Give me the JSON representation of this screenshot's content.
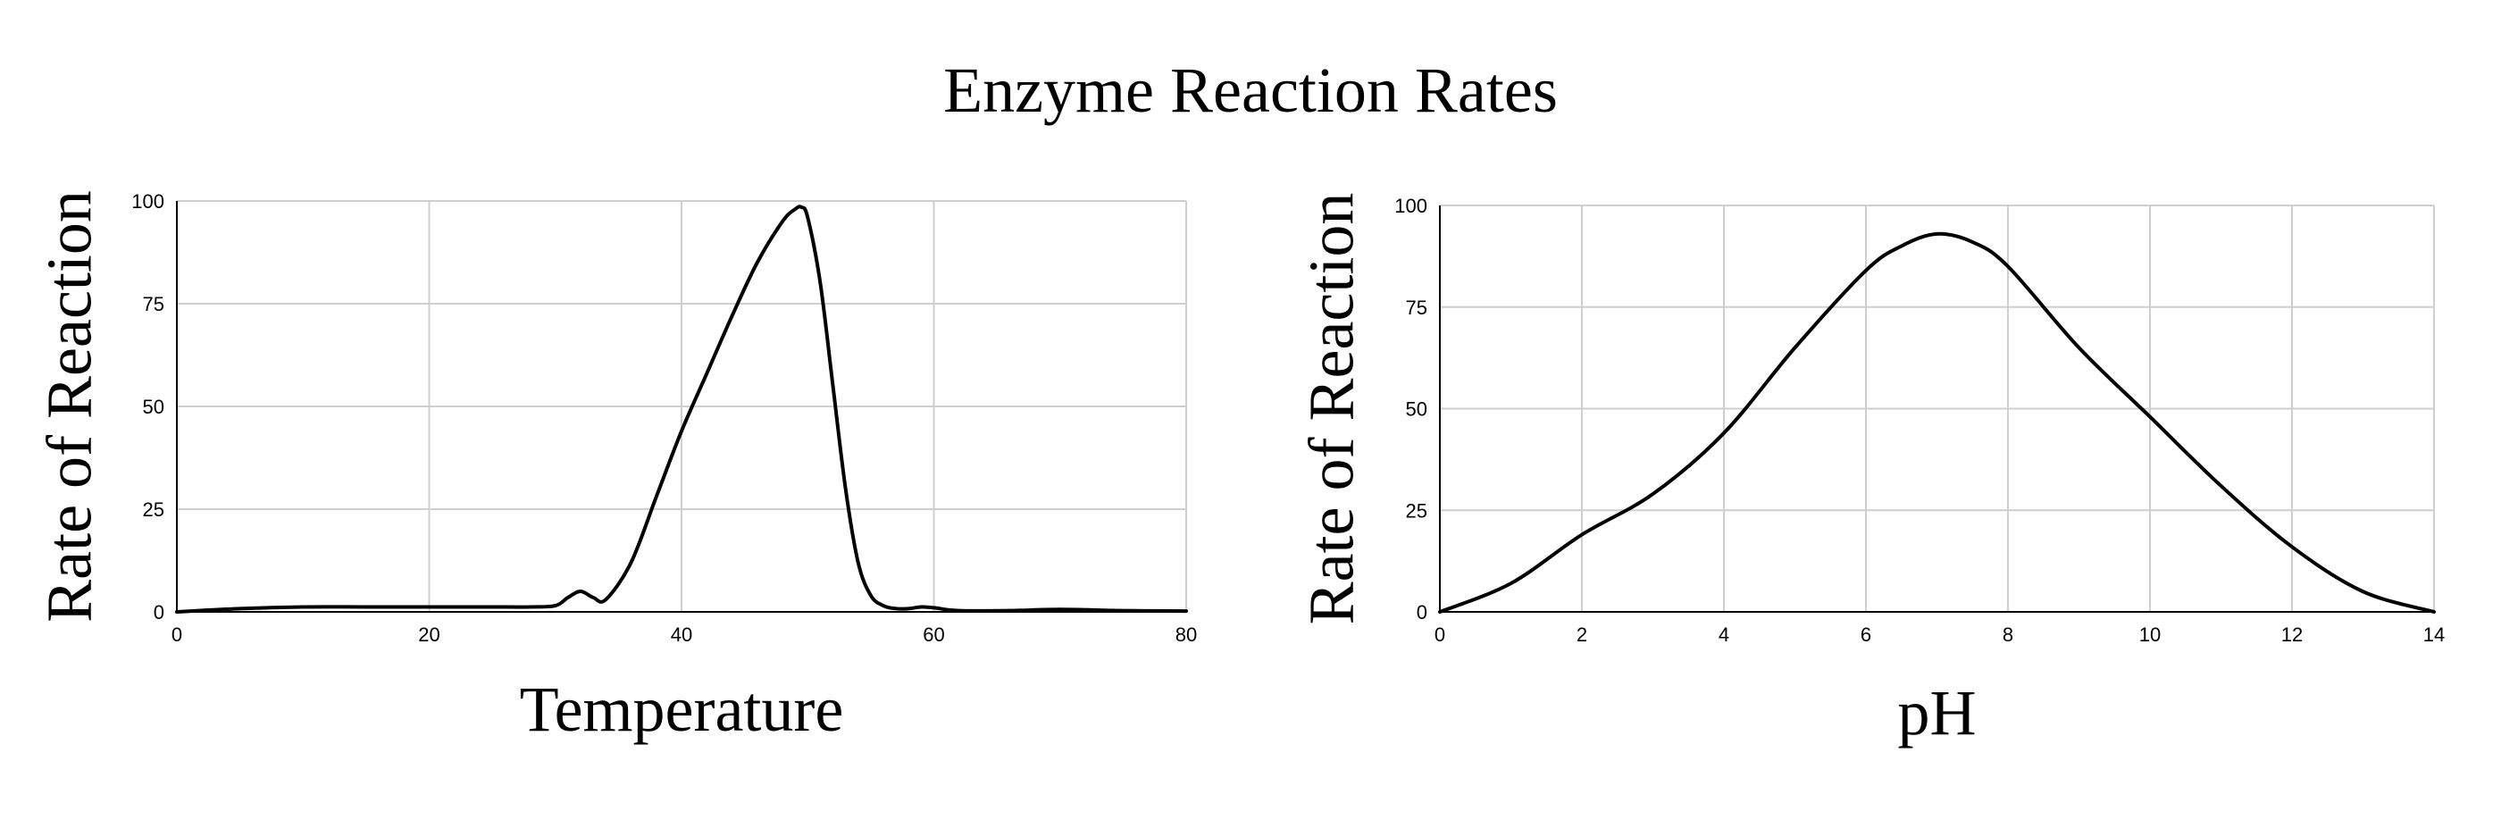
{
  "figure": {
    "title": "Enzyme Reaction Rates"
  },
  "chart_data": [
    {
      "type": "line",
      "title": "",
      "xlabel": "Temperature",
      "ylabel": "Rate of Reaction",
      "xlim": [
        0,
        80
      ],
      "ylim": [
        0,
        100
      ],
      "x_ticks": [
        0,
        20,
        40,
        60,
        80
      ],
      "y_ticks": [
        0,
        25,
        50,
        75,
        100
      ],
      "grid": true,
      "series": [
        {
          "x": [
            0,
            5,
            10,
            15,
            20,
            25,
            28,
            30,
            31,
            32,
            33,
            34,
            36,
            38,
            40,
            42,
            44,
            46,
            48,
            49,
            49.5,
            50,
            51,
            52,
            53,
            54,
            55,
            56,
            57,
            58,
            59,
            60,
            62,
            66,
            70,
            75,
            80
          ],
          "y": [
            0,
            0.8,
            1.2,
            1.2,
            1.2,
            1.2,
            1.2,
            1.5,
            3.5,
            5,
            3.5,
            3,
            12,
            28,
            44,
            58,
            72,
            85,
            95,
            98,
            98.5,
            96,
            80,
            55,
            30,
            12,
            4,
            1.5,
            0.8,
            0.8,
            1.2,
            1,
            0.3,
            0.3,
            0.6,
            0.3,
            0.2
          ]
        }
      ]
    },
    {
      "type": "line",
      "title": "",
      "xlabel": "pH",
      "ylabel": "Rate of Reaction",
      "xlim": [
        0,
        14
      ],
      "ylim": [
        0,
        100
      ],
      "x_ticks": [
        0,
        2,
        4,
        6,
        8,
        10,
        12,
        14
      ],
      "y_ticks": [
        0,
        25,
        50,
        75,
        100
      ],
      "grid": true,
      "series": [
        {
          "x": [
            0,
            1,
            2,
            3,
            4,
            5,
            6,
            6.5,
            7,
            7.5,
            8,
            9,
            10,
            11,
            12,
            13,
            14
          ],
          "y": [
            0,
            7,
            19,
            29,
            44,
            65,
            84,
            90,
            93,
            91,
            85,
            65,
            48,
            31,
            16,
            5,
            0
          ]
        }
      ]
    }
  ]
}
